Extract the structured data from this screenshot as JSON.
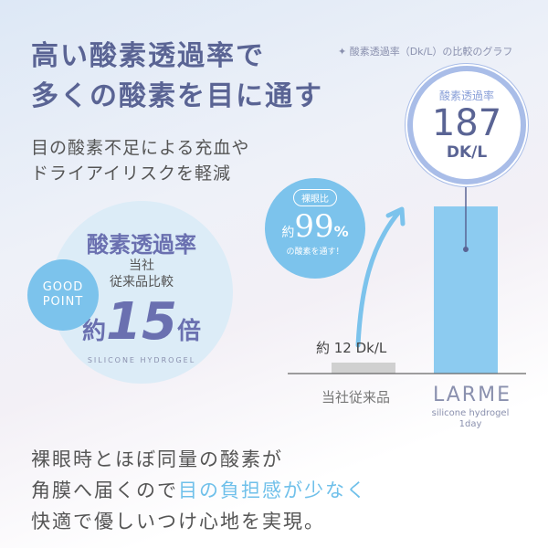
{
  "headline": [
    "高い酸素透過率で",
    "多くの酸素を目に通す"
  ],
  "subheadline": [
    "目の酸素不足による充血や",
    "ドライアイリスクを軽減"
  ],
  "graph_caption": "✦ 酸素透過率（Dk/L）の比較のグラフ",
  "good_point": {
    "line1": "GOOD",
    "line2": "POINT"
  },
  "ratio_badge": {
    "title": "酸素透過率",
    "line1": "当社",
    "line2": "従来品比較",
    "prefix": "約",
    "value": "15",
    "suffix": "倍",
    "arc_text": "SILICONE HYDROGEL"
  },
  "naked_eye_badge": {
    "label": "裸眼比",
    "prefix": "約",
    "value": "99",
    "unit": "%",
    "caption": "の酸素を通す！"
  },
  "value_bubble": {
    "label": "酸素透過率",
    "value": "187",
    "unit": "DK/L"
  },
  "chart_data": {
    "type": "bar",
    "title": "酸素透過率（Dk/L）の比較のグラフ",
    "categories": [
      "当社従来品",
      "LARME"
    ],
    "category_sublabel": [
      "",
      "silicone hydrogel 1day"
    ],
    "values": [
      12,
      187
    ],
    "data_labels": [
      "約 12 Dk/L",
      "187 DK/L"
    ],
    "colors": [
      "#d0d0d0",
      "#8ccbf0"
    ],
    "grid": false
  },
  "body_text": {
    "line1": "裸眼時とほぼ同量の酸素が",
    "line2_a": "角膜へ届くので",
    "line2_b": "目の負担感が少なく",
    "line3": "快適で優しいつけ心地を実現。"
  },
  "colors": {
    "accent": "#7cc3ec",
    "title": "#5a6494",
    "highlight": "#6fc0ea"
  }
}
